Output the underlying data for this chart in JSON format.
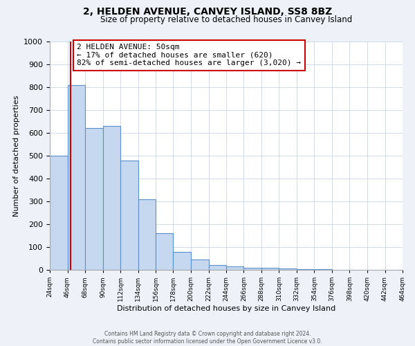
{
  "title": "2, HELDEN AVENUE, CANVEY ISLAND, SS8 8BZ",
  "subtitle": "Size of property relative to detached houses in Canvey Island",
  "xlabel": "Distribution of detached houses by size in Canvey Island",
  "ylabel": "Number of detached properties",
  "bin_edges": [
    24,
    46,
    68,
    90,
    112,
    134,
    156,
    178,
    200,
    222,
    244,
    266,
    288,
    310,
    332,
    354,
    376,
    398,
    420,
    442,
    464
  ],
  "bar_heights": [
    500,
    810,
    620,
    630,
    480,
    310,
    160,
    80,
    45,
    20,
    15,
    10,
    8,
    5,
    3,
    2,
    1,
    1,
    0,
    0
  ],
  "bar_color": "#c5d8f0",
  "bar_edge_color": "#5b8fc9",
  "property_line_x": 50,
  "property_line_color": "#cc0000",
  "annotation_line1": "2 HELDEN AVENUE: 50sqm",
  "annotation_line2": "← 17% of detached houses are smaller (620)",
  "annotation_line3": "82% of semi-detached houses are larger (3,020) →",
  "annotation_box_color": "#ffffff",
  "annotation_box_edge": "#cc0000",
  "ylim": [
    0,
    1000
  ],
  "tick_labels": [
    "24sqm",
    "46sqm",
    "68sqm",
    "90sqm",
    "112sqm",
    "134sqm",
    "156sqm",
    "178sqm",
    "200sqm",
    "222sqm",
    "244sqm",
    "266sqm",
    "288sqm",
    "310sqm",
    "332sqm",
    "354sqm",
    "376sqm",
    "398sqm",
    "420sqm",
    "442sqm",
    "464sqm"
  ],
  "footer_line1": "Contains HM Land Registry data © Crown copyright and database right 2024.",
  "footer_line2": "Contains public sector information licensed under the Open Government Licence v3.0.",
  "bg_color": "#eef2f8",
  "plot_bg_color": "#ffffff",
  "grid_color": "#c8d4e8"
}
